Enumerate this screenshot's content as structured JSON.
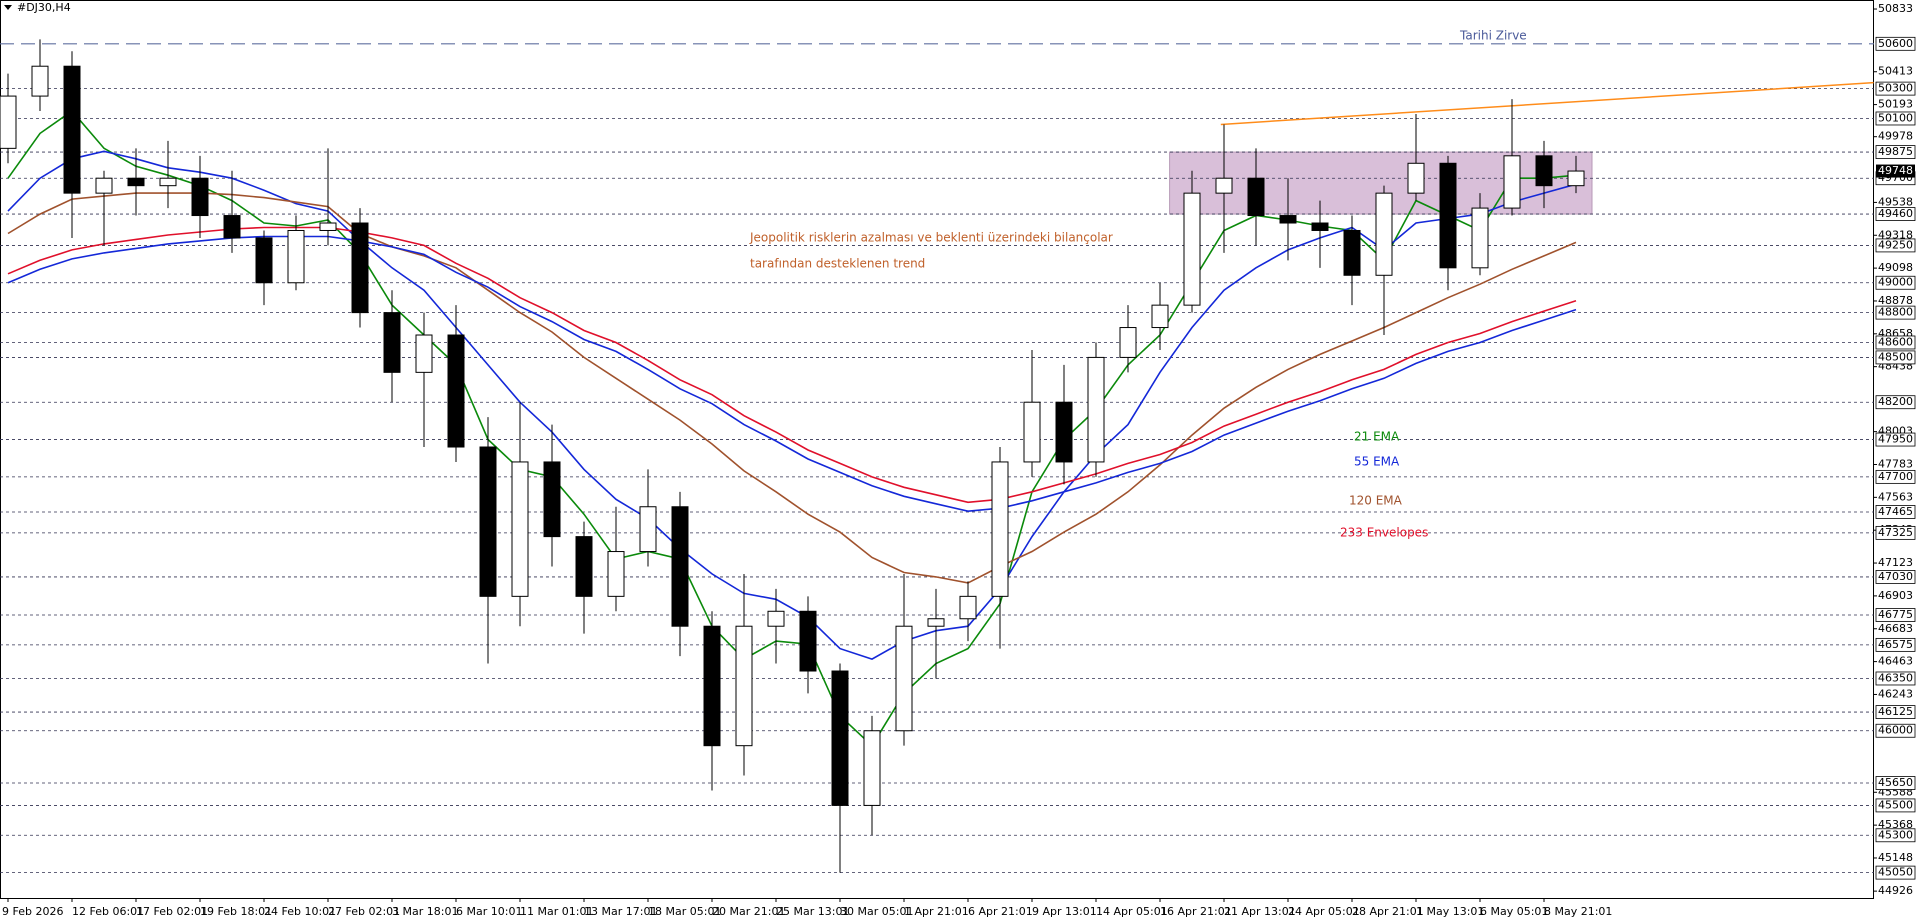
{
  "chart_data": {
    "type": "candlestick",
    "title": "#DJ30,H4",
    "categories": [
      "9 Feb 2026",
      null,
      "12 Feb 06:01",
      null,
      "17 Feb 02:01",
      null,
      "19 Feb 18:01",
      null,
      "24 Feb 10:01",
      null,
      "27 Feb 02:01",
      null,
      "3 Mar 18:01",
      null,
      "6 Mar 10:01",
      null,
      "11 Mar 01:01",
      null,
      "13 Mar 17:01",
      null,
      "18 Mar 05:01",
      null,
      "20 Mar 21:01",
      null,
      "25 Mar 13:01",
      null,
      "30 Mar 05:01",
      null,
      "1 Apr 21:01",
      null,
      "6 Apr 21:01",
      null,
      "9 Apr 13:01",
      null,
      "14 Apr 05:01",
      null,
      "16 Apr 21:01",
      null,
      "21 Apr 13:01",
      null,
      "24 Apr 05:01",
      null,
      "28 Apr 21:01",
      null,
      "1 May 13:01",
      null,
      "6 May 05:01",
      null,
      "8 May 21:01",
      null
    ],
    "open": [
      49900,
      50250,
      50450,
      49600,
      49700,
      49650,
      49700,
      49450,
      49300,
      49000,
      49350,
      49400,
      48800,
      48400,
      48650,
      47900,
      46900,
      47800,
      47300,
      46900,
      47200,
      47500,
      46700,
      45900,
      46700,
      46800,
      46400,
      45500,
      46000,
      46700,
      46750,
      46900,
      47800,
      48200,
      47800,
      48500,
      48700,
      48850,
      49600,
      49700,
      49450,
      49400,
      49350,
      49050,
      49600,
      49800,
      49100,
      49500,
      49850,
      49650
    ],
    "high": [
      50400,
      50630,
      50550,
      49750,
      49900,
      49950,
      49850,
      49750,
      49350,
      49450,
      49900,
      49500,
      48950,
      48800,
      48850,
      48100,
      48200,
      48050,
      47400,
      47500,
      47750,
      47600,
      46800,
      47050,
      46950,
      46900,
      46450,
      46100,
      47050,
      46950,
      47000,
      47900,
      48550,
      48450,
      48600,
      48850,
      49000,
      49750,
      50060,
      49900,
      49700,
      49550,
      49450,
      49650,
      50130,
      49850,
      49600,
      50230,
      49950,
      49850
    ],
    "low": [
      49800,
      50150,
      49300,
      49250,
      49450,
      49500,
      49300,
      49200,
      48850,
      48950,
      49250,
      48700,
      48200,
      47900,
      47800,
      46450,
      46700,
      47100,
      46650,
      46800,
      47100,
      46500,
      45600,
      45700,
      46450,
      46250,
      45050,
      45300,
      45900,
      46350,
      46600,
      46550,
      47700,
      47650,
      47700,
      48400,
      48550,
      48800,
      49200,
      49250,
      49150,
      49100,
      48850,
      48650,
      49550,
      48950,
      49050,
      49450,
      49500,
      49600
    ],
    "close": [
      50250,
      50450,
      49600,
      49700,
      49650,
      49700,
      49450,
      49300,
      49000,
      49350,
      49400,
      48800,
      48400,
      48650,
      47900,
      46900,
      47800,
      47300,
      46900,
      47200,
      47500,
      46700,
      45900,
      46700,
      46800,
      46400,
      45500,
      46000,
      46700,
      46750,
      46900,
      47800,
      48200,
      47800,
      48500,
      48700,
      48850,
      49600,
      49700,
      49450,
      49400,
      49350,
      49050,
      49600,
      49800,
      49100,
      49500,
      49850,
      49650,
      49748
    ],
    "series": [
      {
        "name": "21 EMA",
        "color": "#0b8a0b",
        "values": [
          49700,
          50000,
          50150,
          49900,
          49780,
          49720,
          49650,
          49550,
          49400,
          49380,
          49420,
          49200,
          48850,
          48650,
          48450,
          47950,
          47750,
          47700,
          47450,
          47150,
          47200,
          47150,
          46700,
          46480,
          46600,
          46580,
          46100,
          45900,
          46250,
          46450,
          46550,
          46850,
          47600,
          47950,
          48150,
          48450,
          48650,
          49000,
          49350,
          49450,
          49420,
          49380,
          49350,
          49150,
          49550,
          49450,
          49350,
          49700,
          49700,
          49720
        ]
      },
      {
        "name": "55 EMA",
        "color": "#1428d8",
        "values": [
          49480,
          49700,
          49830,
          49880,
          49830,
          49770,
          49740,
          49700,
          49620,
          49530,
          49480,
          49280,
          49100,
          48950,
          48700,
          48450,
          48200,
          48000,
          47750,
          47550,
          47420,
          47220,
          47050,
          46920,
          46880,
          46760,
          46550,
          46480,
          46600,
          46670,
          46700,
          46950,
          47300,
          47600,
          47850,
          48050,
          48400,
          48700,
          48950,
          49100,
          49220,
          49300,
          49370,
          49220,
          49400,
          49430,
          49460,
          49540,
          49600,
          49660
        ]
      },
      {
        "name": "120 EMA",
        "color": "#a0522d",
        "values": [
          49330,
          49460,
          49560,
          49580,
          49600,
          49600,
          49600,
          49590,
          49570,
          49540,
          49510,
          49330,
          49240,
          49180,
          49100,
          48950,
          48800,
          48670,
          48500,
          48360,
          48220,
          48080,
          47920,
          47740,
          47600,
          47450,
          47330,
          47160,
          47060,
          47030,
          46990,
          47100,
          47200,
          47330,
          47450,
          47600,
          47780,
          47980,
          48160,
          48300,
          48420,
          48520,
          48610,
          48700,
          48800,
          48900,
          48990,
          49090,
          49180,
          49270
        ]
      },
      {
        "name": "233 Envelopes",
        "color": "#e0102b",
        "values": [
          49060,
          49150,
          49220,
          49260,
          49290,
          49320,
          49340,
          49360,
          49370,
          49370,
          49370,
          49340,
          49300,
          49250,
          49130,
          49030,
          48900,
          48800,
          48680,
          48600,
          48480,
          48350,
          48250,
          48110,
          48000,
          47880,
          47790,
          47700,
          47630,
          47580,
          47530,
          47550,
          47600,
          47660,
          47720,
          47790,
          47850,
          47930,
          48040,
          48120,
          48200,
          48270,
          48350,
          48420,
          48520,
          48600,
          48660,
          48740,
          48810,
          48880
        ],
        "lower_color": "#1428d8",
        "lower": [
          49000,
          49090,
          49160,
          49200,
          49230,
          49260,
          49280,
          49300,
          49310,
          49310,
          49310,
          49280,
          49240,
          49190,
          49070,
          48970,
          48840,
          48740,
          48620,
          48540,
          48420,
          48290,
          48190,
          48050,
          47940,
          47820,
          47730,
          47640,
          47570,
          47520,
          47470,
          47490,
          47540,
          47600,
          47660,
          47730,
          47790,
          47870,
          47980,
          48060,
          48140,
          48210,
          48290,
          48360,
          48460,
          48540,
          48600,
          48680,
          48750,
          48820
        ]
      }
    ],
    "ylim": [
      44880,
      50880
    ],
    "yticks": [
      50833,
      50413,
      50193,
      49978,
      49538,
      49318,
      49098,
      48878,
      48658,
      48438,
      48003,
      47783,
      47563,
      47343,
      47123,
      46903,
      46683,
      46463,
      46243,
      45588,
      45368,
      45148,
      44926
    ],
    "levels": [
      50300,
      50100,
      49875,
      49700,
      49460,
      49250,
      49000,
      48800,
      48600,
      48500,
      48200,
      47950,
      47700,
      47465,
      47325,
      47030,
      46775,
      46575,
      46350,
      46125,
      46000,
      45650,
      45500,
      45300,
      45050
    ],
    "peak": {
      "label": "Tarihi Zirve",
      "value": 50600
    },
    "current_price": 49748,
    "zone": {
      "x": [
        36.3,
        49.5
      ],
      "y": [
        49460,
        49875
      ],
      "color": "#d9bfd9"
    },
    "trendline": {
      "x": [
        37.9,
        58.3
      ],
      "y": [
        50060,
        50340
      ],
      "color": "#ff8c1a"
    },
    "annotations": [
      "Jeopolitik risklerin azalması ve beklenti üzerindeki bilançolar",
      "tarafından desteklenen trend"
    ]
  }
}
